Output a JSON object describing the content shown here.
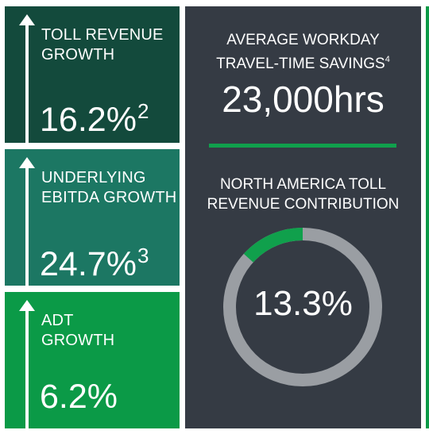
{
  "tiles": [
    {
      "label_line1": "TOLL REVENUE",
      "label_line2": "GROWTH",
      "value": "16.2%",
      "footnote": "2",
      "color": "#134a3c"
    },
    {
      "label_line1": "UNDERLYING",
      "label_line2": "EBITDA GROWTH",
      "value": "24.7%",
      "footnote": "3",
      "color": "#1c7763"
    },
    {
      "label_line1": "ADT",
      "label_line2": "GROWTH",
      "value": "6.2%",
      "footnote": "",
      "color": "#0b9a47"
    }
  ],
  "panel": {
    "savings_line1": "AVERAGE WORKDAY",
    "savings_line2": "TRAVEL-TIME SAVINGS",
    "savings_footnote": "4",
    "savings_value": "23,000hrs",
    "contribution_line1": "NORTH AMERICA TOLL",
    "contribution_line2": "REVENUE CONTRIBUTION",
    "contribution_value": "13.3%",
    "contribution_fraction": 0.133,
    "accent_color": "#10a04c",
    "ring_color": "#9a9ea3",
    "background": "#353b44"
  },
  "icons": [
    "up-arrow-icon"
  ]
}
